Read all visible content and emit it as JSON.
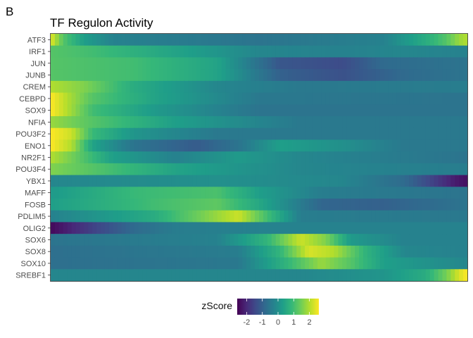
{
  "panel_label": "B",
  "chart_data": {
    "type": "heatmap",
    "title": "TF Regulon Activity",
    "rows": [
      "ATF3",
      "IRF1",
      "JUN",
      "JUNB",
      "CREM",
      "CEBPD",
      "SOX9",
      "NFIA",
      "POU3F2",
      "ENO1",
      "NR2F1",
      "POU3F4",
      "YBX1",
      "MAFF",
      "FOSB",
      "PDLIM5",
      "OLIG2",
      "SOX6",
      "SOX8",
      "SOX10",
      "SREBF1"
    ],
    "n_columns": 100,
    "colorbar": {
      "title": "zScore",
      "ticks": [
        "-2",
        "-1",
        "0",
        "1",
        "2"
      ],
      "tick_values": [
        -2,
        -1,
        0,
        1,
        2
      ],
      "range": [
        -2.6,
        2.6
      ],
      "palette": [
        "#440154",
        "#482878",
        "#3E4A89",
        "#31688E",
        "#26828E",
        "#1F9E89",
        "#35B779",
        "#6DCD59",
        "#B4DE2C",
        "#FDE725"
      ]
    },
    "row_profiles": {
      "ATF3": [
        [
          0,
          2.4
        ],
        [
          3,
          1.2
        ],
        [
          8,
          0.3
        ],
        [
          15,
          -0.3
        ],
        [
          50,
          -0.6
        ],
        [
          80,
          -0.3
        ],
        [
          90,
          0.6
        ],
        [
          95,
          1.2
        ],
        [
          98,
          1.8
        ],
        [
          100,
          2.0
        ]
      ],
      "IRF1": [
        [
          0,
          1.2
        ],
        [
          10,
          1.0
        ],
        [
          30,
          0.4
        ],
        [
          50,
          -0.2
        ],
        [
          70,
          -0.3
        ],
        [
          85,
          -0.2
        ],
        [
          100,
          -0.3
        ]
      ],
      "JUN": [
        [
          0,
          1.2
        ],
        [
          20,
          1.0
        ],
        [
          40,
          0.4
        ],
        [
          55,
          -1.2
        ],
        [
          70,
          -1.4
        ],
        [
          80,
          -0.8
        ],
        [
          100,
          -0.6
        ]
      ],
      "JUNB": [
        [
          0,
          1.2
        ],
        [
          20,
          1.0
        ],
        [
          40,
          0.4
        ],
        [
          55,
          -1.0
        ],
        [
          70,
          -1.3
        ],
        [
          85,
          -0.8
        ],
        [
          100,
          -0.6
        ]
      ],
      "CREM": [
        [
          0,
          2.0
        ],
        [
          8,
          1.6
        ],
        [
          20,
          0.6
        ],
        [
          40,
          -0.2
        ],
        [
          60,
          -0.5
        ],
        [
          100,
          -0.4
        ]
      ],
      "CEBPD": [
        [
          0,
          2.6
        ],
        [
          4,
          2.0
        ],
        [
          10,
          1.2
        ],
        [
          25,
          0.4
        ],
        [
          50,
          -0.5
        ],
        [
          100,
          -0.6
        ]
      ],
      "SOX9": [
        [
          0,
          2.6
        ],
        [
          4,
          2.0
        ],
        [
          10,
          1.0
        ],
        [
          25,
          0.2
        ],
        [
          50,
          -0.6
        ],
        [
          100,
          -0.6
        ]
      ],
      "NFIA": [
        [
          0,
          1.8
        ],
        [
          10,
          1.2
        ],
        [
          30,
          0.3
        ],
        [
          60,
          -0.5
        ],
        [
          100,
          -0.5
        ]
      ],
      "POU3F2": [
        [
          0,
          2.6
        ],
        [
          5,
          2.2
        ],
        [
          10,
          0.9
        ],
        [
          20,
          0.1
        ],
        [
          40,
          -0.5
        ],
        [
          100,
          -0.5
        ]
      ],
      "ENO1": [
        [
          0,
          2.6
        ],
        [
          5,
          2.0
        ],
        [
          10,
          0.4
        ],
        [
          20,
          -0.6
        ],
        [
          35,
          -1.1
        ],
        [
          45,
          -0.6
        ],
        [
          55,
          0.3
        ],
        [
          70,
          0.0
        ],
        [
          85,
          -0.5
        ],
        [
          100,
          -0.5
        ]
      ],
      "NR2F1": [
        [
          0,
          2.0
        ],
        [
          5,
          1.5
        ],
        [
          15,
          0.3
        ],
        [
          30,
          -0.3
        ],
        [
          45,
          0.2
        ],
        [
          60,
          -0.2
        ],
        [
          100,
          -0.6
        ]
      ],
      "POU3F4": [
        [
          0,
          1.6
        ],
        [
          10,
          1.2
        ],
        [
          30,
          0.4
        ],
        [
          60,
          -0.2
        ],
        [
          100,
          -0.4
        ]
      ],
      "YBX1": [
        [
          0,
          -0.2
        ],
        [
          40,
          0.0
        ],
        [
          70,
          -0.2
        ],
        [
          85,
          -0.8
        ],
        [
          92,
          -1.6
        ],
        [
          97,
          -2.2
        ],
        [
          100,
          -2.4
        ]
      ],
      "MAFF": [
        [
          0,
          0.2
        ],
        [
          20,
          0.9
        ],
        [
          40,
          1.1
        ],
        [
          50,
          0.3
        ],
        [
          65,
          -0.4
        ],
        [
          100,
          -0.6
        ]
      ],
      "FOSB": [
        [
          0,
          0.3
        ],
        [
          25,
          1.0
        ],
        [
          40,
          1.3
        ],
        [
          50,
          0.5
        ],
        [
          65,
          -0.9
        ],
        [
          80,
          -1.0
        ],
        [
          100,
          -0.6
        ]
      ],
      "PDLIM5": [
        [
          0,
          -0.3
        ],
        [
          25,
          0.6
        ],
        [
          35,
          1.4
        ],
        [
          45,
          2.2
        ],
        [
          52,
          1.0
        ],
        [
          60,
          -0.4
        ],
        [
          100,
          -0.5
        ]
      ],
      "OLIG2": [
        [
          0,
          -2.5
        ],
        [
          10,
          -1.6
        ],
        [
          20,
          -0.8
        ],
        [
          30,
          -0.4
        ],
        [
          50,
          -0.3
        ],
        [
          100,
          -0.3
        ]
      ],
      "SOX6": [
        [
          0,
          -0.6
        ],
        [
          40,
          -0.3
        ],
        [
          52,
          0.8
        ],
        [
          60,
          2.2
        ],
        [
          66,
          1.6
        ],
        [
          72,
          0.2
        ],
        [
          85,
          -0.3
        ],
        [
          100,
          -0.3
        ]
      ],
      "SOX8": [
        [
          0,
          -0.7
        ],
        [
          45,
          -0.4
        ],
        [
          55,
          0.8
        ],
        [
          62,
          2.3
        ],
        [
          68,
          2.0
        ],
        [
          76,
          0.7
        ],
        [
          85,
          -0.2
        ],
        [
          100,
          -0.3
        ]
      ],
      "SOX10": [
        [
          0,
          -0.7
        ],
        [
          45,
          -0.5
        ],
        [
          55,
          0.6
        ],
        [
          65,
          1.8
        ],
        [
          72,
          1.2
        ],
        [
          80,
          0.3
        ],
        [
          100,
          -0.2
        ]
      ],
      "SREBF1": [
        [
          0,
          -0.2
        ],
        [
          60,
          -0.2
        ],
        [
          80,
          0.1
        ],
        [
          90,
          0.6
        ],
        [
          95,
          1.5
        ],
        [
          98,
          2.3
        ],
        [
          100,
          2.6
        ]
      ]
    }
  }
}
